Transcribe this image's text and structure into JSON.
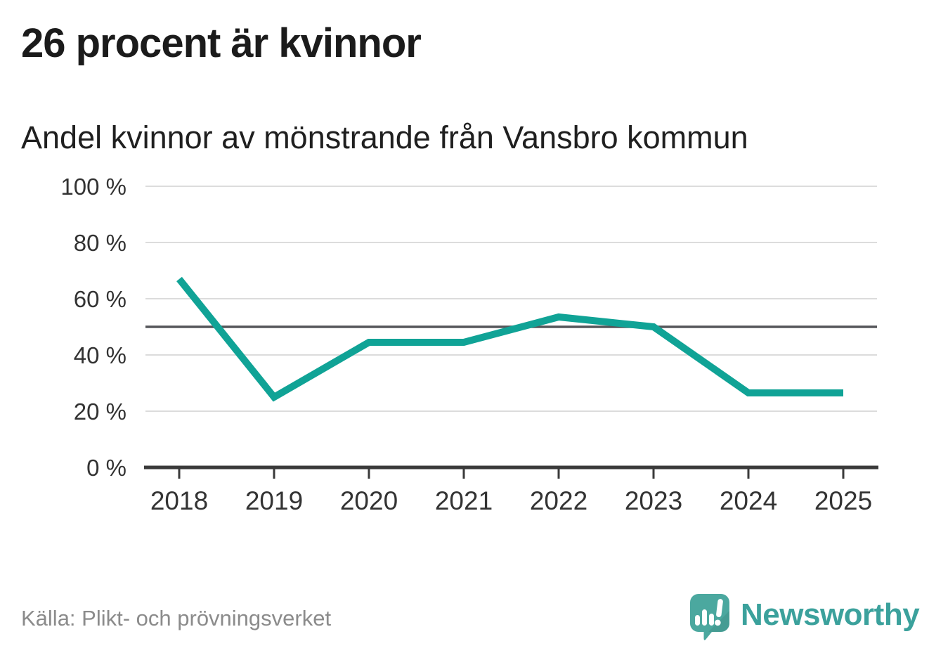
{
  "title": "26 procent är kvinnor",
  "subtitle": "Andel kvinnor av mönstrande från Vansbro kommun",
  "source": "Källa: Plikt- och prövningsverket",
  "brand": {
    "name": "Newsworthy",
    "logo_icon": "newsworthy-speech-bubble-chart-icon",
    "text_color": "#3ba19c",
    "mark_color": "#4ba89f"
  },
  "colors": {
    "line": "#10a396",
    "grid": "#dcdcdc",
    "reference_line": "#55565a",
    "axis": "#3a3a3a",
    "tick_label": "#333333",
    "title_text": "#1b1b1b",
    "source_text": "#8b8b8b"
  },
  "chart_data": {
    "type": "line",
    "x": [
      "2018",
      "2019",
      "2020",
      "2021",
      "2022",
      "2023",
      "2024",
      "2025"
    ],
    "series": [
      {
        "name": "Andel kvinnor av mönstrande",
        "values": [
          67,
          25,
          44.5,
          44.5,
          53.5,
          50,
          26.5,
          26.5
        ]
      }
    ],
    "title": "26 procent är kvinnor",
    "subtitle": "Andel kvinnor av mönstrande från Vansbro kommun",
    "xlabel": "",
    "ylabel": "",
    "ylim": [
      0,
      100
    ],
    "yticks": [
      0,
      20,
      40,
      60,
      80,
      100
    ],
    "ytick_labels": [
      "0 %",
      "20 %",
      "40 %",
      "60 %",
      "80 %",
      "100 %"
    ],
    "unit": "%",
    "reference_line": 50,
    "grid": true,
    "legend": false,
    "line_width": 10
  }
}
